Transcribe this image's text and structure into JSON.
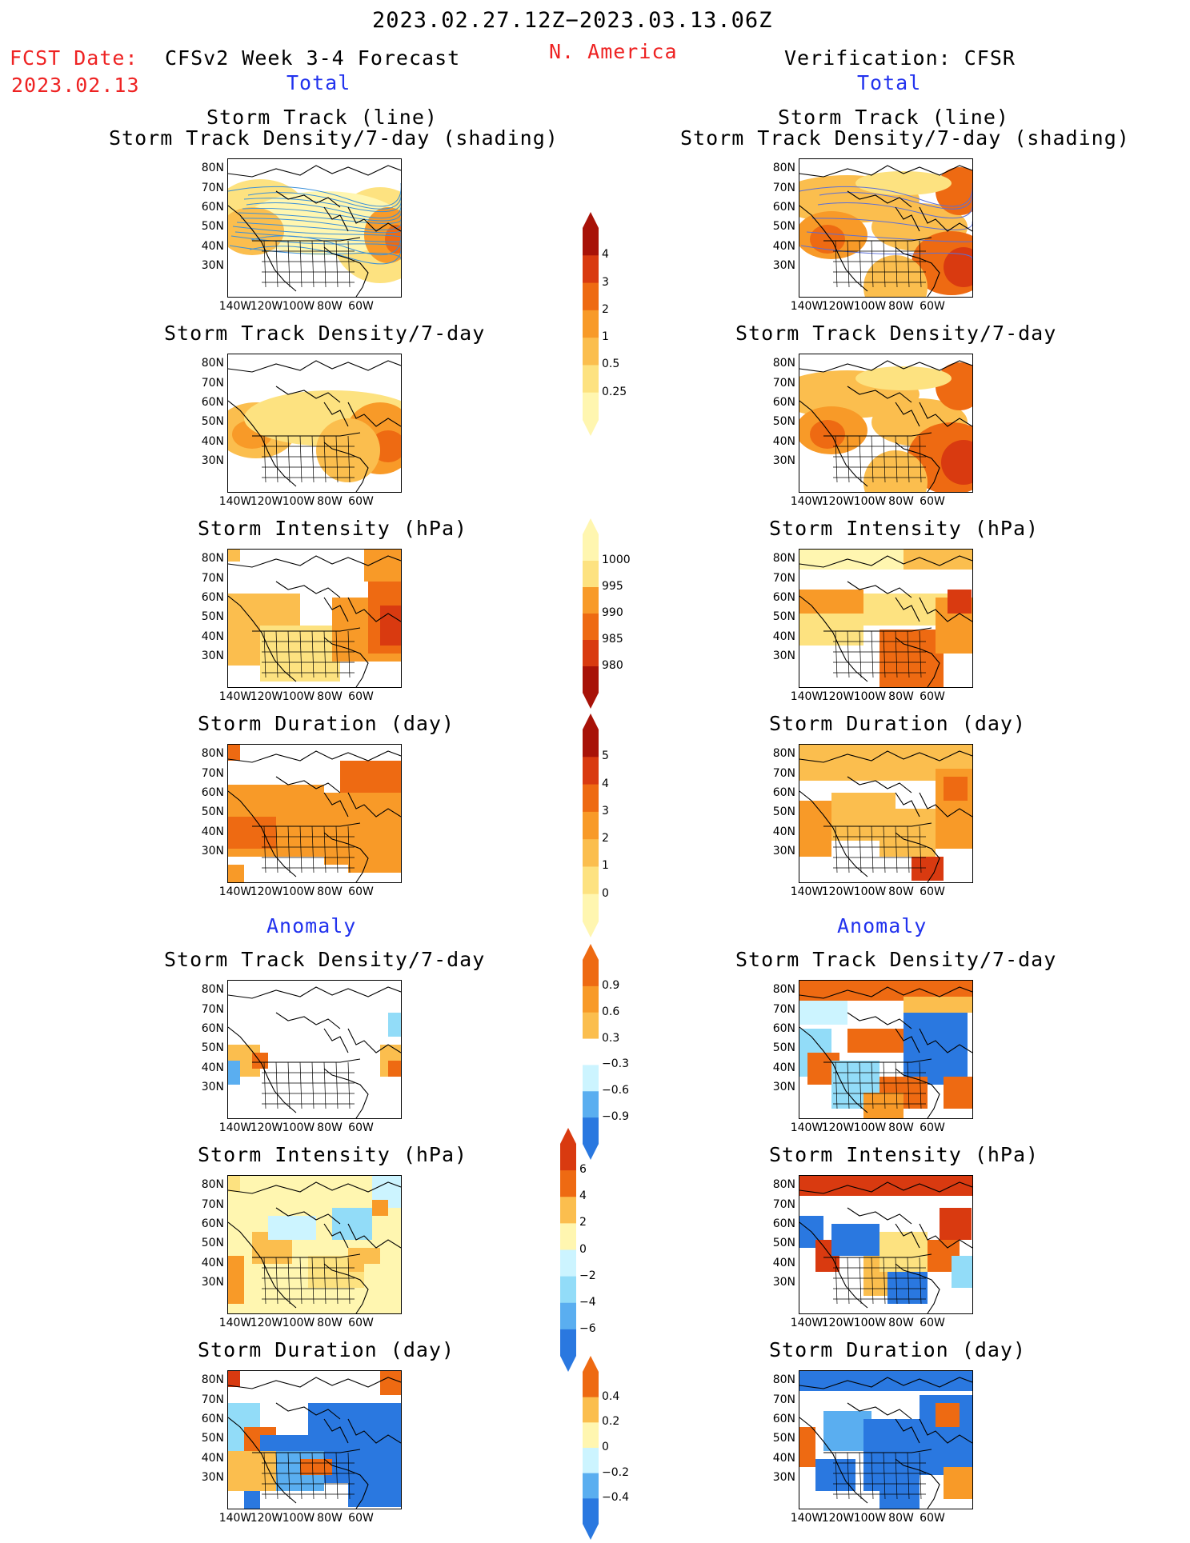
{
  "header": {
    "period": "2023.02.27.12Z−2023.03.13.06Z",
    "fcst_label": "FCST Date:",
    "fcst_date": "2023.02.13",
    "left_title": "CFSv2 Week 3-4 Forecast",
    "region": "N. America",
    "right_title": "Verification: CFSR"
  },
  "sections": {
    "total": "Total",
    "anomaly": "Anomaly"
  },
  "panel_titles": {
    "track_line": "Storm Track (line)",
    "track_shading": "Storm Track Density/7-day (shading)",
    "density": "Storm Track Density/7-day",
    "intensity": "Storm Intensity (hPa)",
    "duration": "Storm Duration (day)"
  },
  "axes": {
    "lat_labels": [
      "80N",
      "70N",
      "60N",
      "50N",
      "40N",
      "30N"
    ],
    "lon_labels": [
      "140W",
      "120W",
      "100W",
      "80W",
      "60W"
    ]
  },
  "colorbars": {
    "density_total": [
      "4",
      "3",
      "2",
      "1",
      "0.5",
      "0.25"
    ],
    "intensity_total": [
      "1000",
      "995",
      "990",
      "985",
      "980"
    ],
    "duration_total": [
      "5",
      "4",
      "3",
      "2",
      "1",
      "0"
    ],
    "density_anom": [
      "0.9",
      "0.6",
      "0.3",
      "−0.3",
      "−0.6",
      "−0.9"
    ],
    "intensity_anom": [
      "6",
      "4",
      "2",
      "0",
      "−2",
      "−4",
      "−6"
    ],
    "duration_anom": [
      "0.4",
      "0.2",
      "0",
      "−0.2",
      "−0.4"
    ]
  },
  "colors": {
    "title_red": "#ee2222",
    "label_blue": "#2233ee",
    "warm": [
      "#fff6b0",
      "#fde280",
      "#fbbe4e",
      "#f89a28",
      "#ee6a12",
      "#d93a10",
      "#a81208"
    ],
    "cool": [
      "#ccf4ff",
      "#92dcf8",
      "#5aaef0",
      "#2a78e0",
      "#1248c0"
    ],
    "track_line": "#3a8fd8"
  }
}
